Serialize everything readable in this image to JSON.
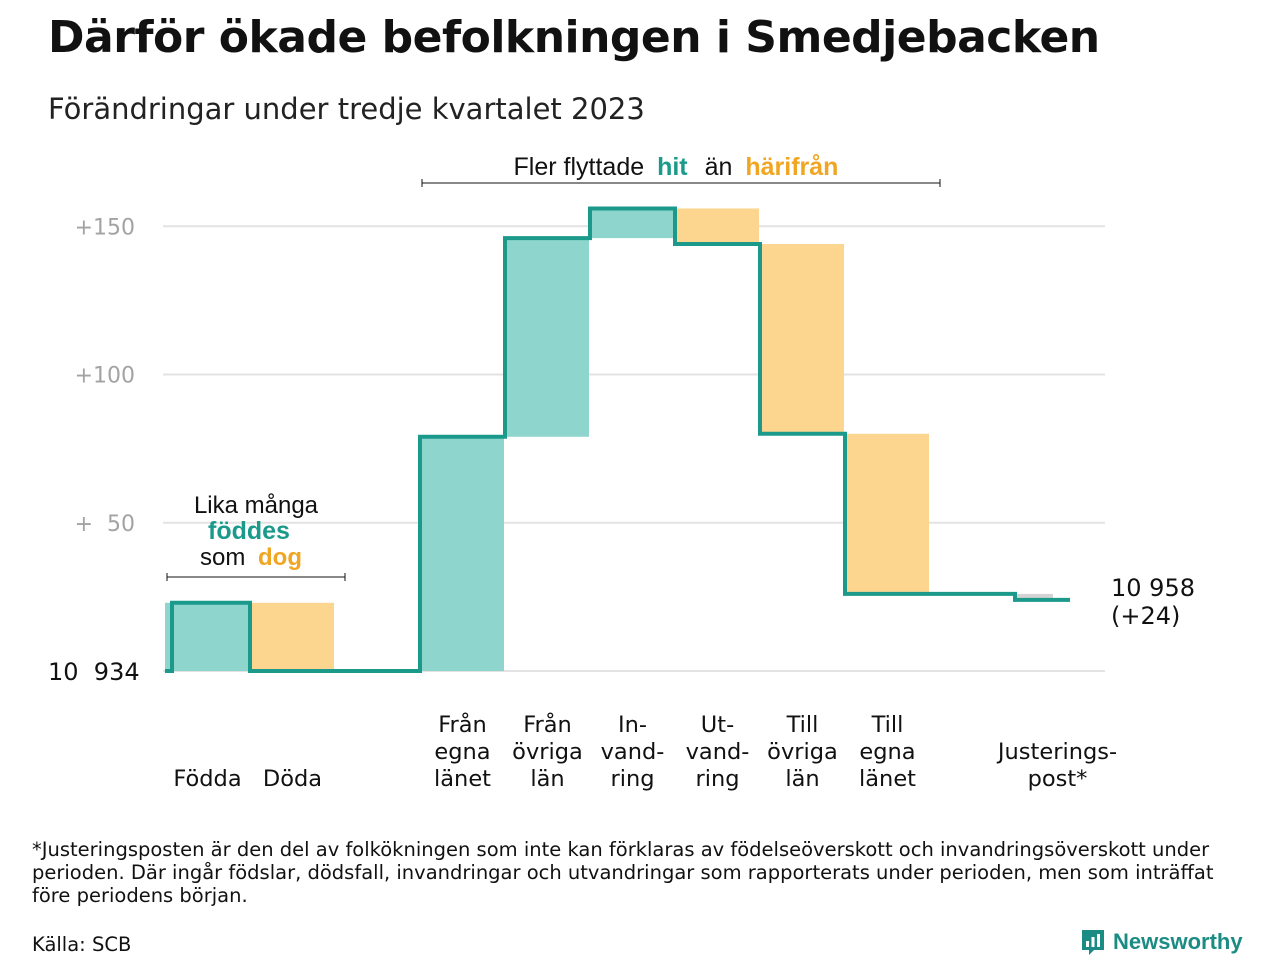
{
  "header": {
    "title": "Därför ökade befolkningen i Smedjebacken",
    "subtitle": "Förändringar under tredje kvartalet 2023"
  },
  "annotations": {
    "births_deaths": {
      "line1": "Lika många",
      "line2": "föddes",
      "line3_prefix": "som",
      "line3_highlight": "dog"
    },
    "migration": {
      "prefix": "Fler flyttade",
      "hit": "hit",
      "middle": "än",
      "harifran": "härifrån"
    },
    "start_value": "10  934",
    "end_value": "10 958",
    "end_change": "(+24)"
  },
  "chart_data": {
    "type": "waterfall",
    "start": 10934,
    "end": 10958,
    "y_ticks": [
      {
        "value": 50,
        "label": "+  50"
      },
      {
        "value": 100,
        "label": "+100"
      },
      {
        "value": 150,
        "label": "+150"
      }
    ],
    "ylim": [
      0,
      160
    ],
    "grid": true,
    "steps": [
      {
        "label": [
          "Födda"
        ],
        "value": 23,
        "kind": "increase"
      },
      {
        "label": [
          "Döda"
        ],
        "value": -23,
        "kind": "decrease"
      },
      {
        "label": [],
        "value": 0,
        "kind": "spacer"
      },
      {
        "label": [
          "Från",
          "egna",
          "länet"
        ],
        "value": 79,
        "kind": "increase"
      },
      {
        "label": [
          "Från",
          "övriga",
          "län"
        ],
        "value": 67,
        "kind": "increase"
      },
      {
        "label": [
          "In-",
          "vand-",
          "ring"
        ],
        "value": 10,
        "kind": "increase"
      },
      {
        "label": [
          "Ut-",
          "vand-",
          "ring"
        ],
        "value": -12,
        "kind": "decrease"
      },
      {
        "label": [
          "Till",
          "övriga",
          "län"
        ],
        "value": -64,
        "kind": "decrease"
      },
      {
        "label": [
          "Till",
          "egna",
          "länet"
        ],
        "value": -54,
        "kind": "decrease"
      },
      {
        "label": [],
        "value": 0,
        "kind": "spacer"
      },
      {
        "label": [
          "Justerings-",
          "post*"
        ],
        "value": -2,
        "kind": "adjustment"
      }
    ],
    "colors": {
      "increase": "#8dd5cd",
      "decrease": "#fcd58e",
      "adjustment": "#d4d4d4",
      "line": "#1b9a8c",
      "hit_text": "#1b9a8c",
      "away_text": "#f0a623",
      "grid": "#e3e3e3",
      "tick_text": "#a3a3a3"
    }
  },
  "footer": {
    "footnote": "*Justeringsposten är den del av folkökningen som inte kan förklaras av födelseöverskott och invandringsöverskott under perioden. Där ingår födslar, dödsfall, invandringar och utvandringar som rapporterats under perioden, men som inträffat före periodens början.",
    "source": "Källa: SCB",
    "brand": "Newsworthy"
  }
}
